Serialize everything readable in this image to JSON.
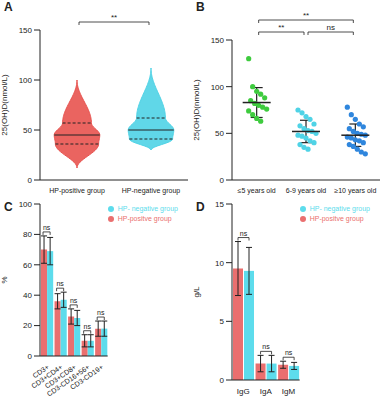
{
  "chart_data": [
    {
      "panel": "A",
      "type": "violin",
      "y_label": "25(OH)D(nmol/L)",
      "categories": [
        "HP-positive group",
        "HP-negative group"
      ],
      "colors": [
        "#e8534f",
        "#4fd3e6"
      ],
      "min": [
        12,
        30
      ],
      "q1": [
        36,
        41
      ],
      "median": [
        45,
        50
      ],
      "q3": [
        57,
        62
      ],
      "max": [
        100,
        112
      ],
      "ylim": [
        0,
        150
      ],
      "yticks": [
        0,
        50,
        100,
        150
      ],
      "comparisons": [
        {
          "pair": [
            "HP-positive group",
            "HP-negative group"
          ],
          "label": "**"
        }
      ]
    },
    {
      "panel": "B",
      "type": "scatter",
      "y_label": "25(OH)D(nmol/L)",
      "categories": [
        "≤5 years old",
        "6-9 years old",
        "≥10 years old"
      ],
      "colors": [
        "#3ecb3e",
        "#4fd3e6",
        "#2f86dd"
      ],
      "values": [
        [
          130,
          100,
          95,
          92,
          88,
          85,
          82,
          80,
          78,
          76,
          74,
          70,
          66,
          63
        ],
        [
          75,
          72,
          68,
          65,
          60,
          58,
          55,
          53,
          52,
          50,
          48,
          47,
          45,
          42,
          40,
          38,
          35,
          33
        ],
        [
          78,
          70,
          65,
          60,
          57,
          55,
          52,
          50,
          49,
          48,
          46,
          45,
          43,
          42,
          40,
          38,
          36,
          33,
          30,
          28
        ]
      ],
      "mean": [
        83,
        52,
        48
      ],
      "sd": [
        16,
        12,
        12
      ],
      "ylim": [
        0,
        150
      ],
      "yticks": [
        0,
        50,
        100,
        150
      ],
      "comparisons": [
        {
          "pair": [
            "≤5 years old",
            "6-9 years old"
          ],
          "label": "**"
        },
        {
          "pair": [
            "6-9 years old",
            "≥10 years old"
          ],
          "label": "ns"
        },
        {
          "pair": [
            "≤5 years old",
            "≥10 years old"
          ],
          "label": "**"
        }
      ]
    },
    {
      "panel": "C",
      "type": "bar",
      "y_label": "%",
      "categories": [
        "CD3+",
        "CD3+CD4+",
        "CD3+CD8+",
        "CD3-CD16+56+",
        "CD3-CD19+"
      ],
      "series": [
        {
          "name": "HP-positve group",
          "color": "#ea6f6f",
          "values": [
            70,
            36,
            26,
            10,
            18
          ],
          "errors": [
            9,
            5,
            5,
            4,
            5
          ]
        },
        {
          "name": "HP- negative group",
          "color": "#5ddcec",
          "values": [
            69,
            37,
            25,
            10,
            18
          ],
          "errors": [
            9,
            5,
            5,
            4,
            5
          ]
        }
      ],
      "ylim": [
        0,
        100
      ],
      "yticks": [
        0,
        20,
        40,
        60,
        80,
        100
      ],
      "legend": "upper right",
      "annotations": [
        "ns",
        "ns",
        "ns",
        "ns",
        "ns"
      ]
    },
    {
      "panel": "D",
      "type": "bar",
      "y_label": "g/L",
      "categories": [
        "IgG",
        "IgA",
        "IgM"
      ],
      "series": [
        {
          "name": "HP-positve group",
          "color": "#ea6f6f",
          "values": [
            9.5,
            1.4,
            1.3
          ],
          "errors": [
            2.3,
            0.7,
            0.3
          ]
        },
        {
          "name": "HP- negative group",
          "color": "#5ddcec",
          "values": [
            9.3,
            1.4,
            1.2
          ],
          "errors": [
            2.0,
            0.7,
            0.3
          ]
        }
      ],
      "ylim": [
        0,
        15
      ],
      "yticks": [
        0,
        5,
        10,
        15
      ],
      "legend": "upper right",
      "annotations": [
        "ns",
        "ns",
        "ns"
      ]
    }
  ]
}
